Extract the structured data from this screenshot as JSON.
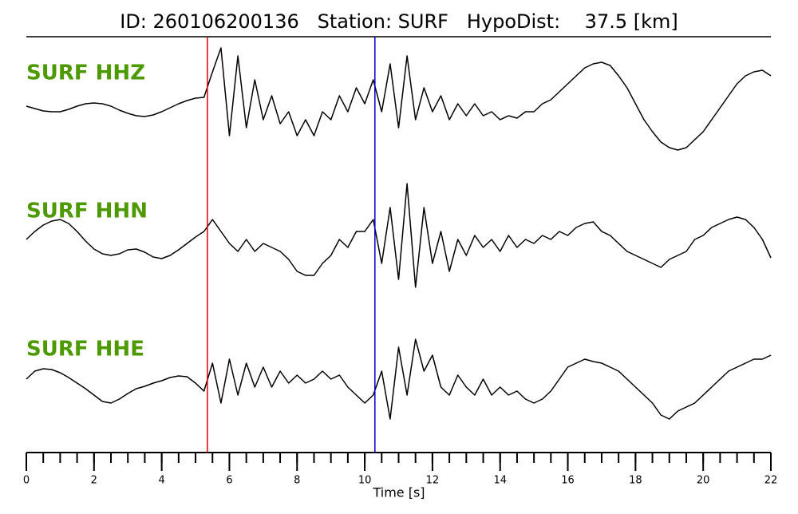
{
  "chart_data": {
    "type": "line",
    "title": "ID: 260106200136   Station: SURF   HypoDist:    37.5 [km]",
    "xlabel": "Time [s]",
    "xlim": [
      0,
      22
    ],
    "xticks": [
      0,
      2,
      4,
      6,
      8,
      10,
      12,
      14,
      16,
      18,
      20,
      22
    ],
    "xminorticks": [
      0,
      0.5,
      1,
      1.5,
      2,
      2.5,
      3,
      3.5,
      4,
      4.5,
      5,
      5.5,
      6,
      6.5,
      7,
      7.5,
      8,
      8.5,
      9,
      9.5,
      10,
      10.5,
      11,
      11.5,
      12,
      12.5,
      13,
      13.5,
      14,
      14.5,
      15,
      15.5,
      16,
      16.5,
      17,
      17.5,
      18,
      18.5,
      19,
      19.5,
      20,
      20.5,
      21,
      21.5,
      22
    ],
    "label_color": "#4d9900",
    "markers": [
      {
        "x": 5.35,
        "color": "#e00000"
      },
      {
        "x": 10.3,
        "color": "#0000c0"
      }
    ],
    "x": [
      0,
      0.25,
      0.5,
      0.75,
      1,
      1.25,
      1.5,
      1.75,
      2,
      2.25,
      2.5,
      2.75,
      3,
      3.25,
      3.5,
      3.75,
      4,
      4.25,
      4.5,
      4.75,
      5,
      5.25,
      5.5,
      5.75,
      6,
      6.25,
      6.5,
      6.75,
      7,
      7.25,
      7.5,
      7.75,
      8,
      8.25,
      8.5,
      8.75,
      9,
      9.25,
      9.5,
      9.75,
      10,
      10.25,
      10.5,
      10.75,
      11,
      11.25,
      11.5,
      11.75,
      12,
      12.25,
      12.5,
      12.75,
      13,
      13.25,
      13.5,
      13.75,
      14,
      14.25,
      14.5,
      14.75,
      15,
      15.25,
      15.5,
      15.75,
      16,
      16.25,
      16.5,
      16.75,
      17,
      17.25,
      17.5,
      17.75,
      18,
      18.25,
      18.5,
      18.75,
      19,
      19.25,
      19.5,
      19.75,
      20,
      20.25,
      20.5,
      20.75,
      21,
      21.25,
      21.5,
      21.75,
      22
    ],
    "series": [
      {
        "name": "SURF HHZ",
        "color": "#000000",
        "values": [
          -0.3,
          -0.6,
          -0.9,
          -1.0,
          -1.0,
          -0.7,
          -0.3,
          0,
          0.1,
          0,
          -0.3,
          -0.8,
          -1.2,
          -1.5,
          -1.6,
          -1.4,
          -1.0,
          -0.5,
          0,
          0.4,
          0.7,
          0.8,
          4,
          7,
          -4,
          6,
          -3,
          3,
          -2,
          1,
          -2.5,
          -1,
          -4,
          -2,
          -4,
          -1,
          -2,
          1,
          -1,
          2,
          0,
          3,
          -1,
          5,
          -3,
          6,
          -2,
          2,
          -1,
          1,
          -2,
          0,
          -1.5,
          0,
          -1.5,
          -1,
          -2,
          -1.5,
          -1.8,
          -1,
          -1,
          0,
          0.5,
          1.5,
          2.5,
          3.5,
          4.5,
          5,
          5.2,
          4.8,
          3.5,
          2,
          0,
          -2,
          -3.5,
          -4.8,
          -5.5,
          -5.8,
          -5.5,
          -4.5,
          -3.5,
          -2,
          -0.5,
          1,
          2.5,
          3.5,
          4,
          4.2,
          3.5
        ]
      },
      {
        "name": "SURF HHN",
        "color": "#000000",
        "values": [
          0,
          1,
          1.8,
          2.3,
          2.5,
          2.0,
          1.0,
          -0.2,
          -1.2,
          -1.8,
          -2.0,
          -1.8,
          -1.3,
          -1.2,
          -1.6,
          -2.2,
          -2.4,
          -2.0,
          -1.3,
          -0.5,
          0.3,
          1.0,
          2.5,
          1,
          -0.5,
          -1.5,
          0,
          -1.5,
          -0.5,
          -1,
          -1.5,
          -2.5,
          -4,
          -4.5,
          -4.5,
          -3,
          -2,
          0,
          -1,
          1,
          1,
          2.5,
          -3,
          4,
          -5,
          7,
          -6,
          4,
          -3,
          1,
          -4,
          0,
          -2,
          0.5,
          -1,
          0,
          -1.5,
          0.5,
          -1,
          0,
          -0.5,
          0.5,
          0,
          1,
          0.5,
          1.5,
          2,
          2.2,
          1,
          0.5,
          -0.5,
          -1.5,
          -2,
          -2.5,
          -3,
          -3.5,
          -2.5,
          -2,
          -1.5,
          0,
          0.5,
          1.5,
          2,
          2.5,
          2.8,
          2.5,
          1.5,
          0,
          -2.3
        ]
      },
      {
        "name": "SURF HHE",
        "color": "#000000",
        "values": [
          0,
          1,
          1.3,
          1.2,
          0.8,
          0.2,
          -0.5,
          -1.2,
          -2,
          -2.8,
          -3,
          -2.5,
          -1.8,
          -1.2,
          -0.9,
          -0.5,
          -0.2,
          0.2,
          0.4,
          0.3,
          -0.5,
          -1.5,
          2,
          -3,
          2.5,
          -2,
          2,
          -1,
          1.5,
          -1,
          1,
          -0.5,
          0.5,
          -0.5,
          0,
          1,
          0,
          0.5,
          -1,
          -2,
          -3,
          -2,
          1,
          -5,
          4,
          -2,
          5,
          1,
          3,
          -1,
          -2,
          0.5,
          -1,
          -2,
          0,
          -2,
          -1,
          -2,
          -1.5,
          -2.5,
          -3,
          -2.5,
          -1.5,
          0,
          1.5,
          2,
          2.5,
          2.2,
          2,
          1.5,
          1,
          0,
          -1,
          -2,
          -3,
          -4.5,
          -5,
          -4,
          -3.5,
          -3,
          -2,
          -1,
          0,
          1,
          1.5,
          2,
          2.5,
          2.5,
          3
        ]
      }
    ]
  }
}
